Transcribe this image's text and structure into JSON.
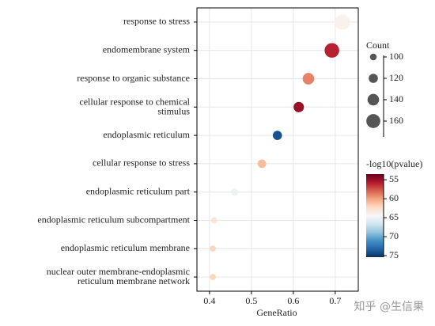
{
  "chart_data": {
    "type": "dot",
    "x_label": "GeneRatio",
    "categories": [
      "response to stress",
      "endomembrane system",
      "response to organic substance",
      "cellular response to chemical\nstimulus",
      "endoplasmic reticulum",
      "cellular response to stress",
      "endoplasmic reticulum part",
      "endoplasmic reticulum subcompartment",
      "endoplasmic reticulum membrane",
      "nuclear outer membrane-endoplasmic\nreticulum membrane network"
    ],
    "x": [
      0.717,
      0.692,
      0.636,
      0.613,
      0.562,
      0.525,
      0.46,
      0.411,
      0.408,
      0.408
    ],
    "size": [
      170,
      165,
      140,
      130,
      120,
      115,
      105,
      95,
      95,
      95
    ],
    "color_values": [
      64,
      56,
      59,
      55,
      74,
      61,
      65,
      63,
      62,
      62
    ],
    "xlim": [
      0.37,
      0.755
    ],
    "xticks": [
      0.4,
      0.5,
      0.6,
      0.7
    ],
    "grid": true,
    "size_legend": {
      "title": "Count",
      "ticks": [
        100,
        120,
        140,
        160
      ]
    },
    "size_lim": [
      90,
      175
    ],
    "color_legend": {
      "title": "-log10(pvalue)",
      "ticks": [
        55,
        60,
        65,
        70,
        75
      ]
    },
    "color_lim": [
      53.5,
      75.4
    ],
    "colormap": [
      "#67001f",
      "#b2182b",
      "#d6604d",
      "#f4a582",
      "#fddbc7",
      "#f7f7f7",
      "#d1e5f0",
      "#92c5de",
      "#4393c3",
      "#2166ac",
      "#053061"
    ],
    "watermark": "知乎 @生信果"
  }
}
